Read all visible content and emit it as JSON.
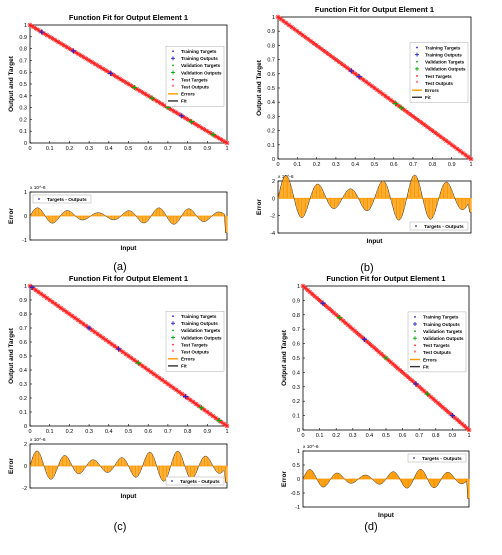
{
  "colors": {
    "training": "#2222cc",
    "validation": "#00aa00",
    "test": "#ff2020",
    "fit": "#333333",
    "errors": "#ff9900",
    "zero_line": "#ff9900",
    "axes": "#000000"
  },
  "chart_data": [
    {
      "panel_label": "(a)",
      "type": "line",
      "title": "Function Fit for Output Element 1",
      "xlabel": "",
      "ylabel": "Output and Target",
      "x_ticks": [
        "0",
        "0.1",
        "0.2",
        "0.3",
        "0.4",
        "0.5",
        "0.6",
        "0.7",
        "0.8",
        "0.9",
        "1"
      ],
      "y_ticks": [
        "0",
        "0.1",
        "0.2",
        "0.3",
        "0.4",
        "0.5",
        "0.6",
        "0.7",
        "0.8",
        "0.9",
        "1"
      ],
      "xlim": [
        0,
        1
      ],
      "ylim": [
        0,
        1
      ],
      "legend": {
        "placement": "right-middle",
        "entries": [
          "Training Targets",
          "Training Outputs",
          "Validation Targets",
          "Validation Outputs",
          "Test Targets",
          "Test Outputs",
          "Errors",
          "Fit"
        ]
      },
      "fit": {
        "x": [
          0,
          1
        ],
        "y": [
          1,
          0
        ]
      },
      "validation_outputs_x": [
        0.53,
        0.62,
        0.7,
        0.82,
        0.93
      ],
      "training_outputs_x": [
        0.06,
        0.22,
        0.41,
        0.77
      ],
      "error_subplot": {
        "ylabel": "Error",
        "xlabel": "Input",
        "exponent_label": "x 10^-6",
        "y_ticks": [
          "-1",
          "0",
          "1"
        ],
        "ylim": [
          -1,
          1
        ],
        "legend": {
          "placement": "top-left",
          "entries": [
            "Targets - Outputs"
          ]
        },
        "error_amplitude": 0.35,
        "oscillations": 13,
        "end_spike": -0.7
      }
    },
    {
      "panel_label": "(b)",
      "type": "line",
      "title": "Function Fit for Output Element 1",
      "xlabel": "",
      "ylabel": "Output and Target",
      "x_ticks": [
        "0",
        "0.1",
        "0.2",
        "0.3",
        "0.4",
        "0.5",
        "0.6",
        "0.7",
        "0.8",
        "0.9",
        "1"
      ],
      "y_ticks": [
        "0",
        "0.1",
        "0.2",
        "0.3",
        "0.4",
        "0.5",
        "0.6",
        "0.7",
        "0.8",
        "0.9",
        "1"
      ],
      "xlim": [
        0,
        1
      ],
      "ylim": [
        0,
        1
      ],
      "legend": {
        "placement": "right-middle",
        "entries": [
          "Training Targets",
          "Training Outputs",
          "Validation Targets",
          "Validation Outputs",
          "Test Targets",
          "Test Outputs",
          "Errors",
          "Fit"
        ]
      },
      "fit": {
        "x": [
          0,
          1
        ],
        "y": [
          1,
          0
        ]
      },
      "validation_outputs_x": [
        0.61,
        0.64
      ],
      "training_outputs_x": [
        0.38,
        0.42
      ],
      "error_subplot": {
        "ylabel": "Error",
        "xlabel": "Input",
        "exponent_label": "x 10^-6",
        "y_ticks": [
          "-4",
          "-2",
          "0",
          "2"
        ],
        "ylim": [
          -4,
          2
        ],
        "legend": {
          "placement": "bottom-right",
          "entries": [
            "Targets - Outputs"
          ]
        },
        "error_amplitude": 0.9,
        "oscillations": 12,
        "end_spike": -1.6
      }
    },
    {
      "panel_label": "(c)",
      "type": "line",
      "title": "Function Fit for Output Element 1",
      "xlabel": "",
      "ylabel": "Output and Target",
      "x_ticks": [
        "0",
        "0.1",
        "0.2",
        "0.3",
        "0.4",
        "0.5",
        "0.6",
        "0.7",
        "0.8",
        "0.9",
        "1"
      ],
      "y_ticks": [
        "0",
        "0.1",
        "0.2",
        "0.3",
        "0.4",
        "0.5",
        "0.6",
        "0.7",
        "0.8",
        "0.9",
        "1"
      ],
      "xlim": [
        0,
        1
      ],
      "ylim": [
        0,
        1
      ],
      "legend": {
        "placement": "right-middle",
        "entries": [
          "Training Targets",
          "Training Outputs",
          "Validation Targets",
          "Validation Outputs",
          "Test Targets",
          "Test Outputs",
          "Errors",
          "Fit"
        ]
      },
      "fit": {
        "x": [
          0,
          1
        ],
        "y": [
          1,
          0
        ]
      },
      "validation_outputs_x": [
        0.55,
        0.87,
        0.96
      ],
      "training_outputs_x": [
        0.01,
        0.3,
        0.45,
        0.79
      ],
      "error_subplot": {
        "ylabel": "Error",
        "xlabel": "Input",
        "exponent_label": "x 10^-6",
        "y_ticks": [
          "-2",
          "0",
          "2"
        ],
        "ylim": [
          -2,
          2
        ],
        "legend": {
          "placement": "bottom-right",
          "entries": [
            "Targets - Outputs"
          ]
        },
        "error_amplitude": 0.7,
        "oscillations": 14,
        "end_spike": -1.5
      }
    },
    {
      "panel_label": "(d)",
      "type": "line",
      "title": "Function Fit for Output Element 1",
      "xlabel": "",
      "ylabel": "Output and Target",
      "x_ticks": [
        "0",
        "0.1",
        "0.2",
        "0.3",
        "0.4",
        "0.5",
        "0.6",
        "0.7",
        "0.8",
        "0.9",
        "1"
      ],
      "y_ticks": [
        "0",
        "0.1",
        "0.2",
        "0.3",
        "0.4",
        "0.5",
        "0.6",
        "0.7",
        "0.8",
        "0.9",
        "1"
      ],
      "xlim": [
        0,
        1
      ],
      "ylim": [
        0,
        1
      ],
      "legend": {
        "placement": "right-middle",
        "entries": [
          "Training Targets",
          "Training Outputs",
          "Validation Targets",
          "Validation Outputs",
          "Test Targets",
          "Test Outputs",
          "Errors",
          "Fit"
        ]
      },
      "fit": {
        "x": [
          0,
          1
        ],
        "y": [
          1,
          0
        ]
      },
      "validation_outputs_x": [
        0.22,
        0.5,
        0.75
      ],
      "training_outputs_x": [
        0.12,
        0.37,
        0.68,
        0.9
      ],
      "error_subplot": {
        "ylabel": "Error",
        "xlabel": "Input",
        "exponent_label": "x 10^-6",
        "y_ticks": [
          "-1",
          "-0.5",
          "0",
          "0.5",
          "1"
        ],
        "ylim": [
          -1,
          1
        ],
        "legend": {
          "placement": "top-right",
          "entries": [
            "Targets - Outputs"
          ]
        },
        "error_amplitude": 0.35,
        "oscillations": 12,
        "end_spike": -0.7
      }
    }
  ]
}
